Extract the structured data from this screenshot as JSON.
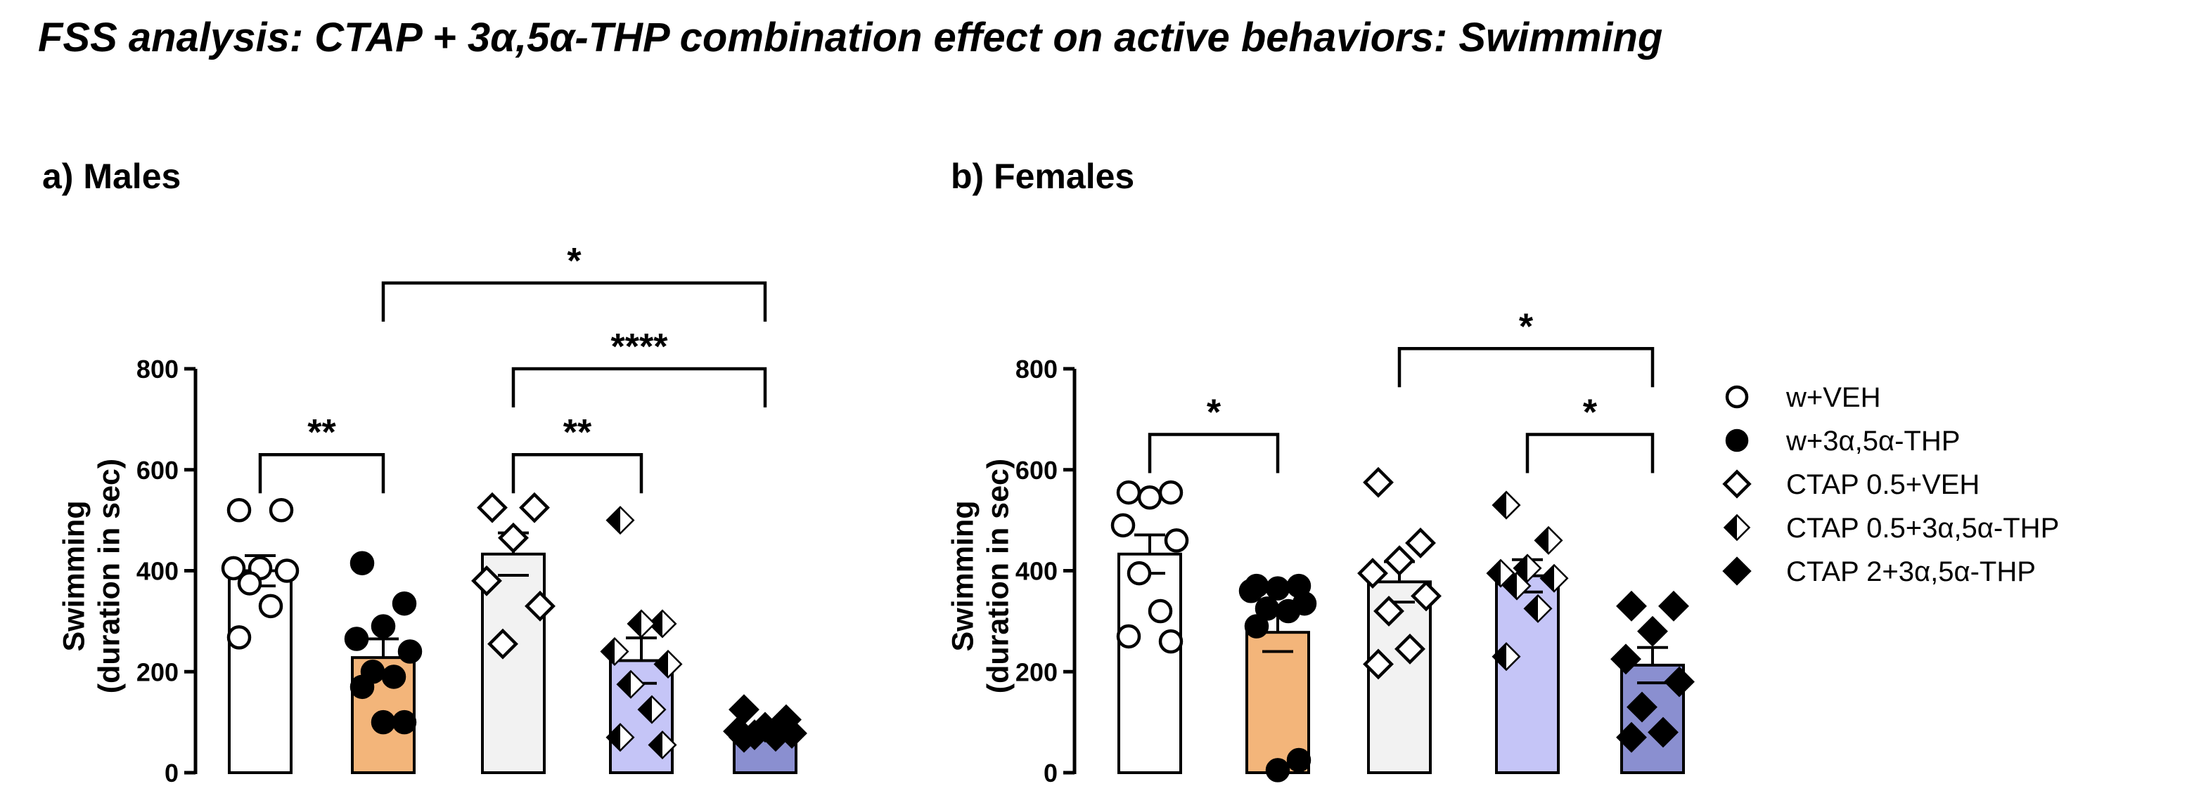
{
  "title": "FSS analysis: CTAP + 3α,5α-THP combination effect on active behaviors: Swimming",
  "legend": [
    {
      "label": "w+VEH",
      "marker": "circle-open",
      "color": "#ffffff"
    },
    {
      "label": "w+3α,5α-THP",
      "marker": "circle-filled",
      "color": "#f3b57a"
    },
    {
      "label": "CTAP 0.5+VEH",
      "marker": "diamond-open",
      "color": "#f2f2f2"
    },
    {
      "label": "CTAP 0.5+3α,5α-THP",
      "marker": "diamond-half",
      "color": "#c5c5f7"
    },
    {
      "label": "CTAP 2+3α,5α-THP",
      "marker": "diamond-filled",
      "color": "#8a8fd0"
    }
  ],
  "chart_data": [
    {
      "type": "bar",
      "title": "a) Males",
      "ylabel": "Swimming\n(duration in sec)",
      "ylim": [
        0,
        800
      ],
      "yticks": [
        "0",
        "200",
        "400",
        "600",
        "800"
      ],
      "categories": [
        "w+VEH",
        "w+3α,5α-THP",
        "CTAP 0.5+VEH",
        "CTAP 0.5+3α,5α-THP",
        "CTAP 2+3α,5α-THP"
      ],
      "values": [
        400,
        228,
        433,
        222,
        82
      ],
      "errors": [
        30,
        37,
        42,
        45,
        10
      ],
      "points": [
        [
          520,
          520,
          405,
          405,
          400,
          375,
          330,
          268
        ],
        [
          415,
          335,
          290,
          265,
          240,
          200,
          190,
          170,
          100,
          100
        ],
        [
          525,
          525,
          465,
          380,
          330,
          255
        ],
        [
          500,
          295,
          295,
          240,
          215,
          175,
          125,
          70,
          55
        ],
        [
          125,
          105,
          90,
          82,
          78,
          75,
          72,
          70
        ]
      ],
      "significance": [
        {
          "from": 0,
          "to": 1,
          "label": "**",
          "y": 630
        },
        {
          "from": 2,
          "to": 3,
          "label": "**",
          "y": 630
        },
        {
          "from": 2,
          "to": 4,
          "label": "****",
          "y": 800
        },
        {
          "from": 1,
          "to": 4,
          "label": "*",
          "y": 970
        }
      ]
    },
    {
      "type": "bar",
      "title": "b) Females",
      "ylabel": "Swimming\n(duration in sec)",
      "ylim": [
        0,
        800
      ],
      "yticks": [
        "0",
        "200",
        "400",
        "600",
        "800"
      ],
      "categories": [
        "w+VEH",
        "w+3α,5α-THP",
        "CTAP 0.5+VEH",
        "CTAP 0.5+3α,5α-THP",
        "CTAP 2+3α,5α-THP"
      ],
      "values": [
        433,
        278,
        378,
        390,
        213
      ],
      "errors": [
        38,
        38,
        40,
        32,
        35
      ],
      "points": [
        [
          555,
          555,
          545,
          490,
          460,
          395,
          320,
          270,
          260
        ],
        [
          370,
          370,
          365,
          360,
          335,
          325,
          320,
          290,
          25,
          5
        ],
        [
          575,
          455,
          420,
          395,
          350,
          320,
          245,
          215
        ],
        [
          530,
          460,
          405,
          395,
          385,
          370,
          325,
          230
        ],
        [
          330,
          330,
          280,
          225,
          180,
          130,
          80,
          70
        ]
      ],
      "significance": [
        {
          "from": 0,
          "to": 1,
          "label": "*",
          "y": 670
        },
        {
          "from": 3,
          "to": 4,
          "label": "*",
          "y": 670
        },
        {
          "from": 2,
          "to": 4,
          "label": "*",
          "y": 840
        }
      ]
    }
  ]
}
